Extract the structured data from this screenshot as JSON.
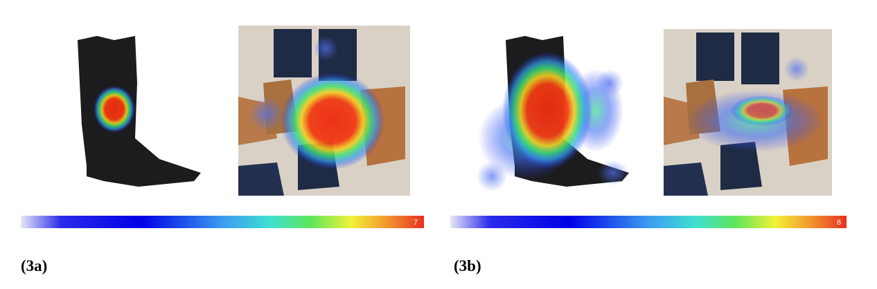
{
  "panels": [
    {
      "label": "(3a)",
      "scale_max": 7
    },
    {
      "label": "(3b)",
      "scale_max": 6
    }
  ]
}
